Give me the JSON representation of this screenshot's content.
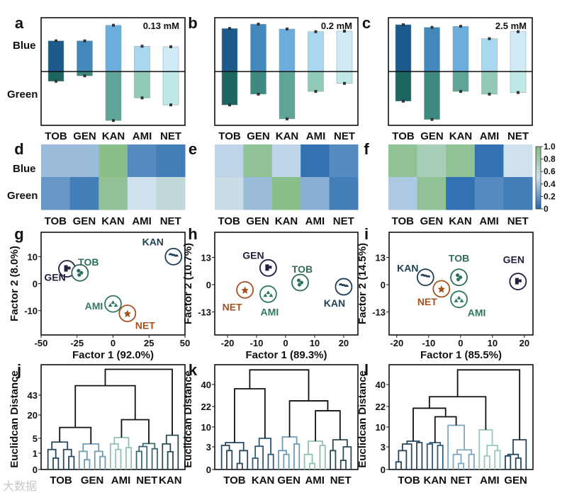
{
  "drugs": [
    "TOB",
    "GEN",
    "KAN",
    "AMI",
    "NET"
  ],
  "colors": {
    "blue_bars": [
      "#1b5a8b",
      "#4288bd",
      "#6caedb",
      "#a9d7ef",
      "#d0eaf6"
    ],
    "green_bars": [
      "#1c6560",
      "#3f8a80",
      "#5fa497",
      "#93c9b8",
      "#c0e8e6"
    ],
    "heat_low": "#2166ac",
    "heat_mid": "#cfe0ef",
    "heat_high": "#82bb7e",
    "GEN": "#22203f",
    "TOB": "#2f6b5a",
    "KAN": "#1f3f52",
    "AMI": "#2e7a5e",
    "NET": "#a5521e"
  },
  "watermark": "大数据",
  "chart_data": [
    {
      "panel": "a",
      "type": "bar",
      "title": "0.13 mM",
      "row_labels": [
        "Blue",
        "Green"
      ],
      "categories": [
        "TOB",
        "GEN",
        "KAN",
        "AMI",
        "NET"
      ],
      "series": [
        {
          "name": "Blue",
          "values": [
            0.57,
            0.57,
            0.86,
            0.47,
            0.46
          ]
        },
        {
          "name": "Green",
          "values": [
            0.18,
            0.08,
            0.91,
            0.49,
            0.62
          ]
        }
      ],
      "ylim": [
        -1,
        1
      ]
    },
    {
      "panel": "b",
      "type": "bar",
      "title": "0.2 mM",
      "categories": [
        "TOB",
        "GEN",
        "KAN",
        "AMI",
        "NET"
      ],
      "series": [
        {
          "name": "Blue",
          "values": [
            0.8,
            0.88,
            0.79,
            0.74,
            0.75
          ]
        },
        {
          "name": "Green",
          "values": [
            0.62,
            0.42,
            0.88,
            0.37,
            0.22
          ]
        }
      ],
      "ylim": [
        -1,
        1
      ]
    },
    {
      "panel": "c",
      "type": "bar",
      "title": "2.5 mM",
      "categories": [
        "TOB",
        "GEN",
        "KAN",
        "AMI",
        "NET"
      ],
      "series": [
        {
          "name": "Blue",
          "values": [
            0.87,
            0.82,
            0.84,
            0.61,
            0.74
          ]
        },
        {
          "name": "Green",
          "values": [
            0.55,
            0.89,
            0.37,
            0.42,
            0.39
          ]
        }
      ],
      "ylim": [
        -1,
        1
      ]
    },
    {
      "panel": "d",
      "type": "heatmap",
      "rows": [
        "Blue",
        "Green"
      ],
      "columns": [
        "TOB",
        "GEN",
        "KAN",
        "AMI",
        "NET"
      ],
      "values": [
        [
          0.35,
          0.35,
          0.95,
          0.15,
          0.1
        ],
        [
          0.2,
          0.1,
          0.9,
          0.5,
          0.6
        ]
      ]
    },
    {
      "panel": "e",
      "type": "heatmap",
      "rows": [
        "Blue",
        "Green"
      ],
      "columns": [
        "TOB",
        "GEN",
        "KAN",
        "AMI",
        "NET"
      ],
      "values": [
        [
          0.45,
          0.9,
          0.45,
          0.05,
          0.15
        ],
        [
          0.55,
          0.35,
          0.95,
          0.3,
          0.1
        ]
      ]
    },
    {
      "panel": "f",
      "type": "heatmap",
      "rows": [
        "Blue",
        "Green"
      ],
      "columns": [
        "TOB",
        "GEN",
        "KAN",
        "AMI",
        "NET"
      ],
      "values": [
        [
          0.9,
          0.75,
          0.9,
          0.05,
          0.5
        ],
        [
          0.4,
          0.9,
          0.05,
          0.15,
          0.1
        ]
      ],
      "colorbar": {
        "range": [
          0,
          1
        ],
        "ticks": [
          "1.0",
          "0.8",
          "0.6",
          "0.4",
          "0.2",
          "0"
        ]
      }
    },
    {
      "panel": "g",
      "type": "scatter",
      "xlabel": "Factor 1 (92.0%)",
      "ylabel": "Factor 2 (8.0%)",
      "xlim": [
        -50,
        50
      ],
      "ylim": [
        -19,
        19
      ],
      "xticks": [
        "-50",
        "-25",
        "0",
        "25",
        "50"
      ],
      "yticks": [
        "10",
        "0",
        "-10"
      ],
      "points": [
        {
          "label": "GEN",
          "x": -32,
          "y": 5.5
        },
        {
          "label": "TOB",
          "x": -23,
          "y": 4
        },
        {
          "label": "KAN",
          "x": 42,
          "y": 10
        },
        {
          "label": "AMI",
          "x": 0,
          "y": -7.5
        },
        {
          "label": "NET",
          "x": 10,
          "y": -11
        }
      ]
    },
    {
      "panel": "h",
      "type": "scatter",
      "xlabel": "Factor 1 (89.3%)",
      "ylabel": "Factor 2 (10.7%)",
      "xlim": [
        -24.4,
        24.9
      ],
      "ylim": [
        -24,
        25
      ],
      "xticks": [
        "-20",
        "-10",
        "0",
        "10",
        "20"
      ],
      "yticks": [
        "13",
        "0",
        "-13"
      ],
      "points": [
        {
          "label": "GEN",
          "x": -6,
          "y": 8
        },
        {
          "label": "TOB",
          "x": 5,
          "y": 1
        },
        {
          "label": "KAN",
          "x": 20,
          "y": -1
        },
        {
          "label": "NET",
          "x": -14,
          "y": -2.5
        },
        {
          "label": "AMI",
          "x": -6,
          "y": -4.5
        }
      ]
    },
    {
      "panel": "i",
      "type": "scatter",
      "xlabel": "Factor 1 (85.5%)",
      "ylabel": "Factor 2 (14.5%)",
      "xlim": [
        -22.4,
        22.7
      ],
      "ylim": [
        -24,
        25
      ],
      "xticks": [
        "-20",
        "-10",
        "0",
        "10",
        "20"
      ],
      "yticks": [
        "13",
        "0",
        "-13"
      ],
      "points": [
        {
          "label": "KAN",
          "x": -11,
          "y": 3.5
        },
        {
          "label": "NET",
          "x": -6,
          "y": -2
        },
        {
          "label": "TOB",
          "x": -0.5,
          "y": 3.5
        },
        {
          "label": "AMI",
          "x": -0.5,
          "y": -7
        },
        {
          "label": "GEN",
          "x": 18,
          "y": 1.5
        }
      ]
    },
    {
      "panel": "j",
      "type": "dendrogram",
      "ylabel": "Euclidcan Distance",
      "yticks": [
        "0",
        "1",
        "5",
        "20",
        "43"
      ],
      "groups": [
        {
          "label": "TOB",
          "color": "#27485f",
          "tree": [
            4,
            [
              2,
              null,
              [
                0.7,
                null,
                null
              ]
            ],
            [
              2,
              null,
              [
                0.8,
                null,
                null
              ]
            ]
          ]
        },
        {
          "label": "GEN",
          "color": "#6f9bb3",
          "tree": [
            3.5,
            [
              1.5,
              null,
              [
                0.6,
                null,
                null
              ]
            ],
            [
              1.5,
              null,
              [
                0.8,
                null,
                null
              ]
            ]
          ]
        },
        {
          "label": "AMI",
          "color": "#8fc1b5",
          "tree": [
            5.5,
            [
              3.5,
              null,
              [
                2,
                null,
                null
              ]
            ],
            [
              2.5,
              null,
              null
            ]
          ]
        },
        {
          "label": "NET",
          "color": "#3f6a72",
          "tree": [
            3.6,
            [
              2.8,
              [
                1.5,
                null,
                null
              ],
              null
            ],
            [
              2.2,
              null,
              null
            ]
          ]
        },
        {
          "label": "KAN",
          "color": "#2a4a55",
          "tree": [
            7,
            [
              3.5,
              null,
              [
                1.4,
                null,
                null
              ]
            ],
            null
          ]
        }
      ],
      "top": [
        73,
        [
          54,
          [
            12,
            "TOB",
            "GEN"
          ],
          [
            17,
            "AMI",
            "NET"
          ]
        ],
        "KAN"
      ]
    },
    {
      "panel": "k",
      "type": "dendrogram",
      "ylabel": "Euclidcan Distance",
      "yticks": [
        "0",
        "3",
        "10",
        "22",
        "40"
      ],
      "groups": [
        {
          "label": "TOB",
          "color": "#27485f",
          "tree": [
            4.5,
            [
              3.5,
              null,
              [
                2.5,
                null,
                null
              ]
            ],
            [
              2.5,
              [
                0.8,
                null,
                null
              ],
              null
            ]
          ]
        },
        {
          "label": "KAN",
          "color": "#2f5a78",
          "tree": [
            6,
            [
              3.2,
              [
                1.5,
                null,
                null
              ],
              null
            ],
            [
              2,
              null,
              null
            ]
          ]
        },
        {
          "label": "GEN",
          "color": "#6f9bb3",
          "tree": [
            6.5,
            [
              2.5,
              null,
              [
                2,
                null,
                null
              ]
            ],
            [
              4,
              null,
              null
            ]
          ]
        },
        {
          "label": "AMI",
          "color": "#8fc1b5",
          "tree": [
            5,
            [
              2,
              null,
              [
                0.8,
                null,
                null
              ]
            ],
            [
              3.5,
              null,
              null
            ]
          ]
        },
        {
          "label": "NET",
          "color": "#2a4a55",
          "tree": [
            5.5,
            [
              2.5,
              null,
              null
            ],
            [
              3,
              [
                1.2,
                null,
                null
              ],
              null
            ]
          ]
        }
      ],
      "top": [
        52,
        [
          36.5,
          "TOB",
          "KAN"
        ],
        [
          26.6,
          "GEN",
          [
            19.5,
            "AMI",
            "NET"
          ]
        ]
      ]
    },
    {
      "panel": "l",
      "type": "dendrogram",
      "ylabel": "Euclidcan Distance",
      "yticks": [
        "0",
        "3",
        "10",
        "22",
        "40"
      ],
      "groups": [
        {
          "label": "TOB",
          "color": "#27485f",
          "tree": [
            5,
            [
              4,
              [
                2.5,
                [
                  1,
                  null,
                  null
                ],
                null
              ],
              null
            ],
            [
              4.5,
              null,
              null
            ]
          ]
        },
        {
          "label": "KAN",
          "color": "#2f5a78",
          "tree": [
            4.5,
            [
              4,
              null,
              null
            ],
            [
              3.5,
              null,
              null
            ]
          ]
        },
        {
          "label": "NET",
          "color": "#7fa7c4",
          "tree": [
            11,
            null,
            [
              2.6,
              [
                2,
                null,
                [
                  0.8,
                  null,
                  null
                ]
              ],
              [
                2,
                null,
                null
              ]
            ]
          ]
        },
        {
          "label": "AMI",
          "color": "#9cc8c0",
          "tree": [
            9,
            null,
            [
              3.5,
              [
                1.8,
                null,
                null
              ],
              [
                2.5,
                null,
                null
              ]
            ]
          ]
        },
        {
          "label": "GEN",
          "color": "#27485f",
          "tree": [
            5.5,
            [
              2,
              [
                1.8,
                null,
                null
              ],
              [
                1.5,
                null,
                null
              ]
            ],
            null
          ]
        }
      ],
      "top": [
        52,
        [
          30,
          [
            21,
            "TOB",
            [
              16,
              "KAN",
              "NET"
            ]
          ],
          "AMI"
        ],
        "GEN"
      ]
    }
  ]
}
